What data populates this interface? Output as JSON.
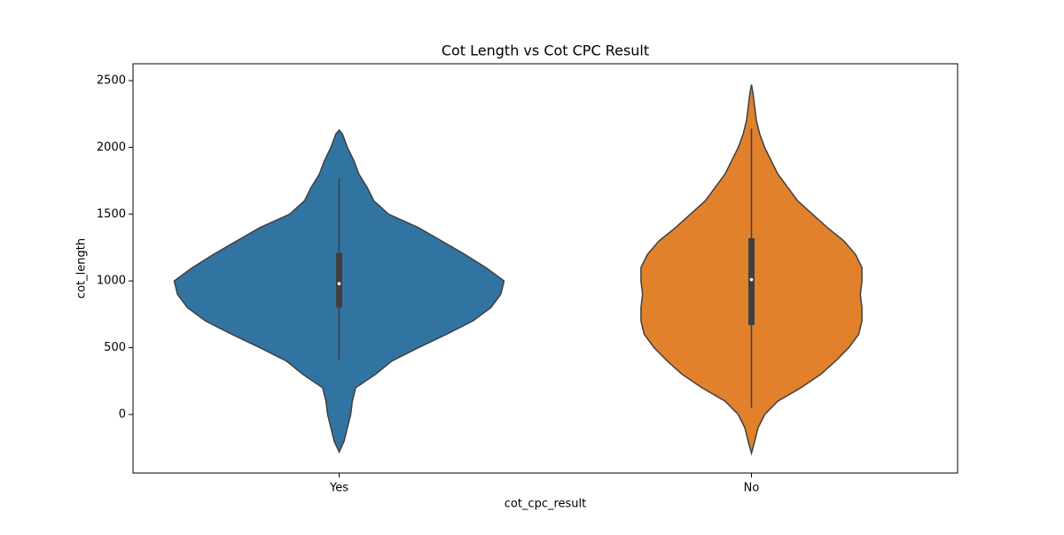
{
  "chart_data": {
    "type": "violin",
    "title": "Cot Length vs Cot CPC Result",
    "x_label": "cot_cpc_result",
    "y_label": "cot_length",
    "categories": [
      "Yes",
      "No"
    ],
    "ylim": [
      -438,
      2626
    ],
    "yticks": [
      0,
      500,
      1000,
      1500,
      2000,
      2500
    ],
    "edge_color": "#3f3f3f",
    "violins": [
      {
        "color": "#3274a1",
        "y": [
          -280,
          -200,
          -100,
          0,
          100,
          200,
          300,
          400,
          500,
          600,
          700,
          800,
          900,
          1000,
          1100,
          1200,
          1300,
          1400,
          1500,
          1600,
          1700,
          1800,
          1900,
          2000,
          2100,
          2130
        ],
        "density": [
          0,
          0.03,
          0.05,
          0.07,
          0.08,
          0.1,
          0.22,
          0.32,
          0.48,
          0.65,
          0.81,
          0.92,
          0.98,
          1,
          0.89,
          0.76,
          0.62,
          0.48,
          0.3,
          0.21,
          0.17,
          0.12,
          0.09,
          0.05,
          0.02,
          0
        ],
        "whislo": 410,
        "q1": 800,
        "median": 980,
        "q3": 1210,
        "whishi": 1770
      },
      {
        "color": "#e1812c",
        "y": [
          -290,
          -200,
          -100,
          0,
          100,
          200,
          300,
          400,
          500,
          600,
          700,
          800,
          900,
          1000,
          1100,
          1200,
          1300,
          1400,
          1500,
          1600,
          1700,
          1800,
          1900,
          2000,
          2100,
          2200,
          2300,
          2400,
          2470
        ],
        "density": [
          0,
          0.02,
          0.04,
          0.08,
          0.16,
          0.3,
          0.42,
          0.51,
          0.59,
          0.65,
          0.67,
          0.67,
          0.66,
          0.67,
          0.67,
          0.63,
          0.56,
          0.46,
          0.37,
          0.28,
          0.22,
          0.16,
          0.12,
          0.08,
          0.05,
          0.03,
          0.02,
          0.01,
          0
        ],
        "whislo": 50,
        "q1": 670,
        "median": 1010,
        "q3": 1320,
        "whishi": 2140
      }
    ]
  }
}
